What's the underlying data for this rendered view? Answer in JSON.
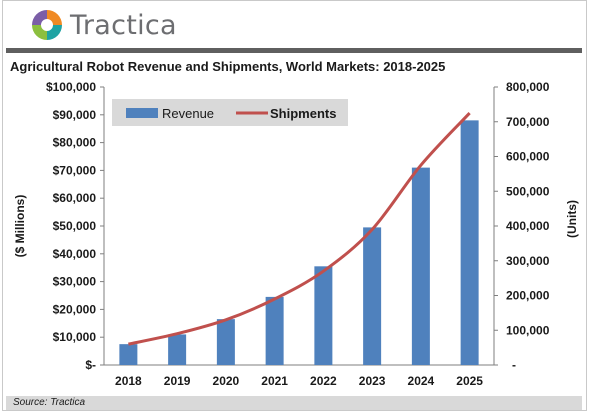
{
  "brand": {
    "name": "Tractica",
    "logo_icon": "tractica-pinwheel-logo",
    "colors": {
      "orange": "#f08a24",
      "purple": "#7b5ea7",
      "teal": "#1fa3a3",
      "green": "#8cbf3f"
    }
  },
  "source_text": "Source: Tractica",
  "chart_data": {
    "type": "bar",
    "title": "Agricultural Robot Revenue and Shipments, World Markets: 2018-2025",
    "categories": [
      "2018",
      "2019",
      "2020",
      "2021",
      "2022",
      "2023",
      "2024",
      "2025"
    ],
    "ylabel": "($ Millions)",
    "y2label": "(Units)",
    "ylim": [
      0,
      100000
    ],
    "y2lim": [
      0,
      800000
    ],
    "yticks": [
      "$-",
      "$10,000",
      "$20,000",
      "$30,000",
      "$40,000",
      "$50,000",
      "$60,000",
      "$70,000",
      "$80,000",
      "$90,000",
      "$100,000"
    ],
    "y2ticks": [
      "-",
      "100,000",
      "200,000",
      "300,000",
      "400,000",
      "500,000",
      "600,000",
      "700,000",
      "800,000"
    ],
    "legend_position": "top-left",
    "grid": false,
    "series": [
      {
        "name": "Revenue",
        "type": "bar",
        "axis": "left",
        "color": "#4f81bd",
        "values": [
          7500,
          11000,
          16500,
          24500,
          35500,
          49500,
          71000,
          88000
        ]
      },
      {
        "name": "Shipments",
        "type": "line",
        "axis": "right",
        "color": "#c0504d",
        "values": [
          60000,
          90000,
          130000,
          190000,
          270000,
          390000,
          575000,
          725000
        ]
      }
    ]
  }
}
